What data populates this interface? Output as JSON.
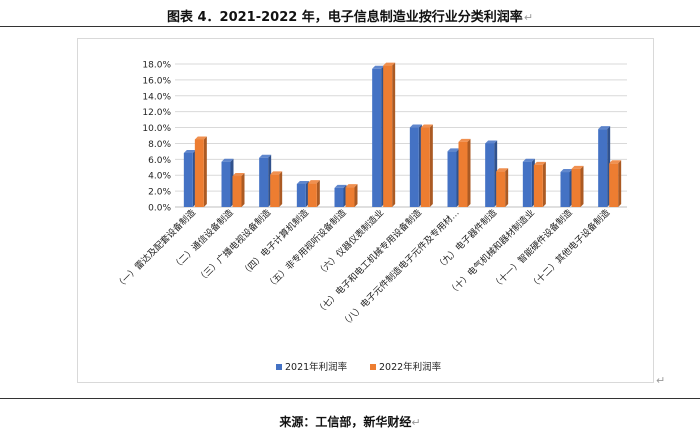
{
  "title": "图表 4．2021-2022 年，电子信息制造业按行业分类利润率",
  "source": "来源：工信部，新华财经",
  "para_mark": "↵",
  "colors": {
    "s2021": "#4472C4",
    "s2022": "#ED7D31",
    "grid": "#d9d9d9",
    "axis": "#bfbfbf"
  },
  "chart_data": {
    "type": "bar",
    "categories": [
      "（一）雷达及配套设备制造",
      "（二）通信设备制造",
      "（三）广播电视设备制造",
      "（四）电子计算机制造",
      "（五）非专用视听设备制造",
      "（六）仪器仪表制造业",
      "（七）电子和电工机械专用设备制造",
      "（八）电子元件制造电子元件及专用材…",
      "（九）电子器件制造",
      "（十）电气机械和器材制造业",
      "（十一）智能硬件设备制造",
      "（十二）其他电子设备制造"
    ],
    "series": [
      {
        "name": "2021年利润率",
        "values": [
          6.8,
          5.7,
          6.2,
          2.9,
          2.4,
          17.4,
          10.0,
          7.0,
          8.0,
          5.7,
          4.4,
          9.8
        ]
      },
      {
        "name": "2022年利润率",
        "values": [
          8.5,
          3.9,
          4.1,
          3.0,
          2.5,
          17.8,
          10.0,
          8.2,
          4.5,
          5.3,
          4.8,
          5.5
        ]
      }
    ],
    "yticks": [
      "0.0%",
      "2.0%",
      "4.0%",
      "6.0%",
      "8.0%",
      "10.0%",
      "12.0%",
      "14.0%",
      "16.0%",
      "18.0%"
    ],
    "ylim": [
      0,
      18
    ],
    "grid": true,
    "legend": "bottom"
  }
}
